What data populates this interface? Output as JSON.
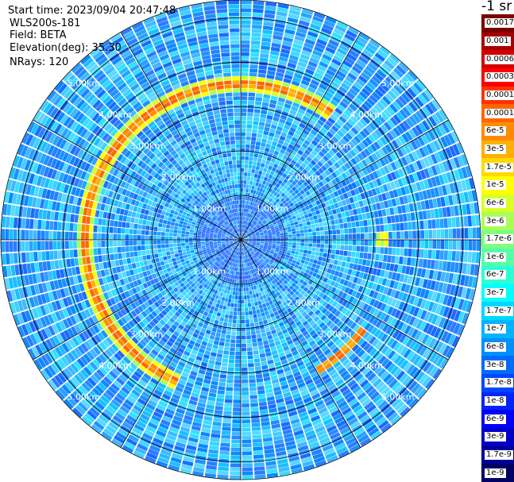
{
  "info": {
    "start_time": "Start time: 2023/09/04 20:47:48",
    "instrument": "WLS200s-181",
    "field": "Field: BETA",
    "elevation": "Elevation(deg): 35.30",
    "nrays": "NRays: 120"
  },
  "colorbar": {
    "unit": "-1 sr",
    "levels": [
      {
        "label": "0.0017",
        "color": "#7a0000"
      },
      {
        "label": "0.001",
        "color": "#a80000"
      },
      {
        "label": "0.0006",
        "color": "#d40000"
      },
      {
        "label": "0.0003",
        "color": "#ff0000"
      },
      {
        "label": "0.00017",
        "color": "#ff3300"
      },
      {
        "label": "0.0001",
        "color": "#ff6600"
      },
      {
        "label": "6e-5",
        "color": "#ff8c00"
      },
      {
        "label": "3e-5",
        "color": "#ffb000"
      },
      {
        "label": "1.7e-5",
        "color": "#ffd800"
      },
      {
        "label": "1e-5",
        "color": "#ffff00"
      },
      {
        "label": "6e-6",
        "color": "#d8ff26"
      },
      {
        "label": "3e-6",
        "color": "#a8ff55"
      },
      {
        "label": "1.7e-6",
        "color": "#7dff80"
      },
      {
        "label": "1e-6",
        "color": "#55ffaa"
      },
      {
        "label": "6e-7",
        "color": "#2affd4"
      },
      {
        "label": "3e-7",
        "color": "#00ffff"
      },
      {
        "label": "1.7e-7",
        "color": "#00d8ff"
      },
      {
        "label": "1e-7",
        "color": "#00b4ff"
      },
      {
        "label": "6e-8",
        "color": "#0090ff"
      },
      {
        "label": "3e-8",
        "color": "#006cff"
      },
      {
        "label": "1.7e-8",
        "color": "#0048ff"
      },
      {
        "label": "1e-8",
        "color": "#0024ff"
      },
      {
        "label": "6e-9",
        "color": "#0000ff"
      },
      {
        "label": "3e-9",
        "color": "#0000c8"
      },
      {
        "label": "1.7e-9",
        "color": "#000096"
      },
      {
        "label": "1e-9",
        "color": "#000064"
      }
    ]
  },
  "chart_data": {
    "type": "heatmap",
    "projection": "polar PPI scan",
    "n_rays": 120,
    "range_rings_km": [
      1.0,
      2.0,
      3.0,
      4.0,
      5.0
    ],
    "ring_labels": [
      "1.00km",
      "2.00km",
      "3.00km",
      "4.00km",
      "5.00km"
    ],
    "max_range_km": 5.4,
    "background_level": "1e-7 to 6e-8 (cyan-blue)",
    "features": [
      {
        "description": "enhanced backscatter arc",
        "range_km": [
          3.3,
          3.6
        ],
        "azimuth_deg_from": 205,
        "azimuth_deg_to": 35,
        "peak_value": "0.0001 to 6e-5"
      },
      {
        "description": "enhanced backscatter arc",
        "range_km": [
          3.3,
          3.5
        ],
        "azimuth_deg_from": 125,
        "azimuth_deg_to": 150,
        "peak_value": "0.0001"
      },
      {
        "description": "isolated return",
        "range_km": [
          3.1,
          3.3
        ],
        "azimuth_deg_from": 88,
        "azimuth_deg_to": 92,
        "peak_value": "1e-5"
      }
    ]
  }
}
